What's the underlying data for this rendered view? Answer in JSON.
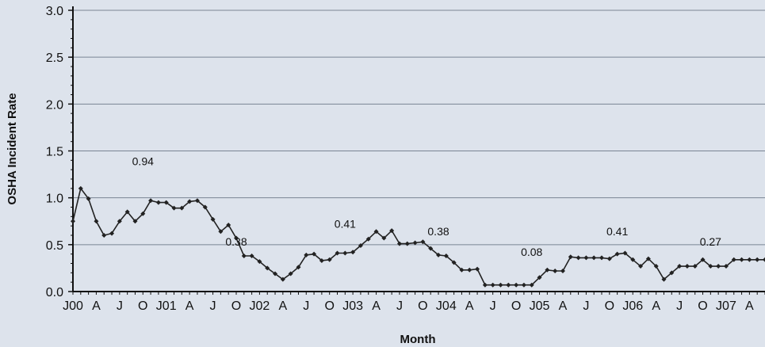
{
  "chart_data": {
    "type": "line",
    "title": "",
    "xlabel": "Month",
    "ylabel": "OSHA Incident Rate",
    "ylim": [
      0,
      3.0
    ],
    "yticks": [
      "0.0",
      "0.5",
      "1.0",
      "1.5",
      "2.0",
      "2.5",
      "3.0"
    ],
    "grid": true,
    "x_tick_labels": [
      "J00",
      "A",
      "J",
      "O",
      "J01",
      "A",
      "J",
      "O",
      "J02",
      "A",
      "J",
      "O",
      "J03",
      "A",
      "J",
      "O",
      "J04",
      "A",
      "J",
      "O",
      "J05",
      "A",
      "J",
      "O",
      "J06",
      "A",
      "J",
      "O",
      "J07",
      "A"
    ],
    "x_start": "2000-01",
    "x_end": "2007-06",
    "series": [
      {
        "name": "",
        "color": "#222222",
        "values": [
          0.75,
          1.1,
          0.99,
          0.75,
          0.6,
          0.62,
          0.75,
          0.85,
          0.75,
          0.83,
          0.97,
          0.95,
          0.95,
          0.89,
          0.89,
          0.96,
          0.97,
          0.9,
          0.77,
          0.64,
          0.71,
          0.57,
          0.38,
          0.38,
          0.32,
          0.25,
          0.19,
          0.13,
          0.19,
          0.26,
          0.39,
          0.4,
          0.33,
          0.34,
          0.41,
          0.41,
          0.42,
          0.49,
          0.56,
          0.64,
          0.57,
          0.65,
          0.51,
          0.51,
          0.52,
          0.53,
          0.46,
          0.39,
          0.38,
          0.31,
          0.23,
          0.23,
          0.24,
          0.07,
          0.07,
          0.07,
          0.07,
          0.07,
          0.07,
          0.07,
          0.15,
          0.23,
          0.22,
          0.22,
          0.37,
          0.36,
          0.36,
          0.36,
          0.36,
          0.35,
          0.4,
          0.41,
          0.34,
          0.27,
          0.35,
          0.27,
          0.13,
          0.2,
          0.27,
          0.27,
          0.27,
          0.34,
          0.27,
          0.27,
          0.27,
          0.34,
          0.34,
          0.34,
          0.34,
          0.34
        ]
      }
    ],
    "annotations": [
      {
        "text": "0.94",
        "x": "2000-10",
        "y": 1.35
      },
      {
        "text": "0.38",
        "x": "2001-10",
        "y": 0.49
      },
      {
        "text": "0.41",
        "x": "2002-12",
        "y": 0.68
      },
      {
        "text": "0.38",
        "x": "2003-12",
        "y": 0.6
      },
      {
        "text": "0.08",
        "x": "2004-12",
        "y": 0.38
      },
      {
        "text": "0.41",
        "x": "2005-11",
        "y": 0.6
      },
      {
        "text": "0.27",
        "x": "2006-11",
        "y": 0.49
      }
    ]
  }
}
